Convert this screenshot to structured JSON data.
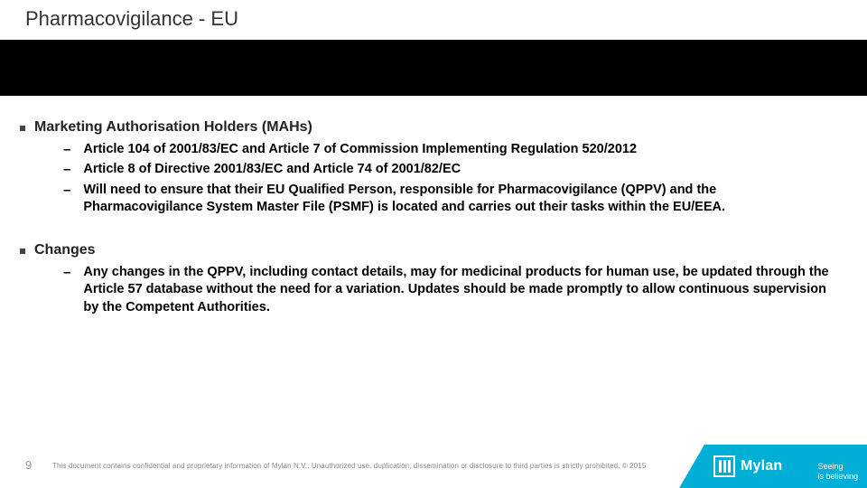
{
  "colors": {
    "accent": "#00aed6",
    "band": "#000000",
    "text": "#222222",
    "muted": "#9a9a9a"
  },
  "header": {
    "title": "Pharmacovigilance - EU"
  },
  "sections": [
    {
      "heading": "Marketing Authorisation Holders (MAHs)",
      "items": [
        "Article 104 of 2001/83/EC and Article 7 of Commission Implementing Regulation 520/2012",
        "Article 8 of Directive 2001/83/EC and Article 74 of 2001/82/EC",
        "Will need to ensure that their EU Qualified Person, responsible for Pharmacovigilance (QPPV) and the Pharmacovigilance System Master File (PSMF) is located and carries out their tasks within the EU/EEA."
      ]
    },
    {
      "heading": "Changes",
      "items": [
        "Any changes in the QPPV, including contact details, may for medicinal products for human use, be updated through the Article 57 database without the need for a variation. Updates should be made promptly to allow continuous supervision by the Competent Authorities."
      ]
    }
  ],
  "footer": {
    "page": "9",
    "disclaimer": "This document contains confidential and proprietary information of Mylan N.V.. Unauthorized use, duplication, dissemination or disclosure to third parties is strictly prohibited. © 2015"
  },
  "brand": {
    "name": "Mylan",
    "tagline_line1": "Seeing",
    "tagline_line2": "is believing"
  }
}
